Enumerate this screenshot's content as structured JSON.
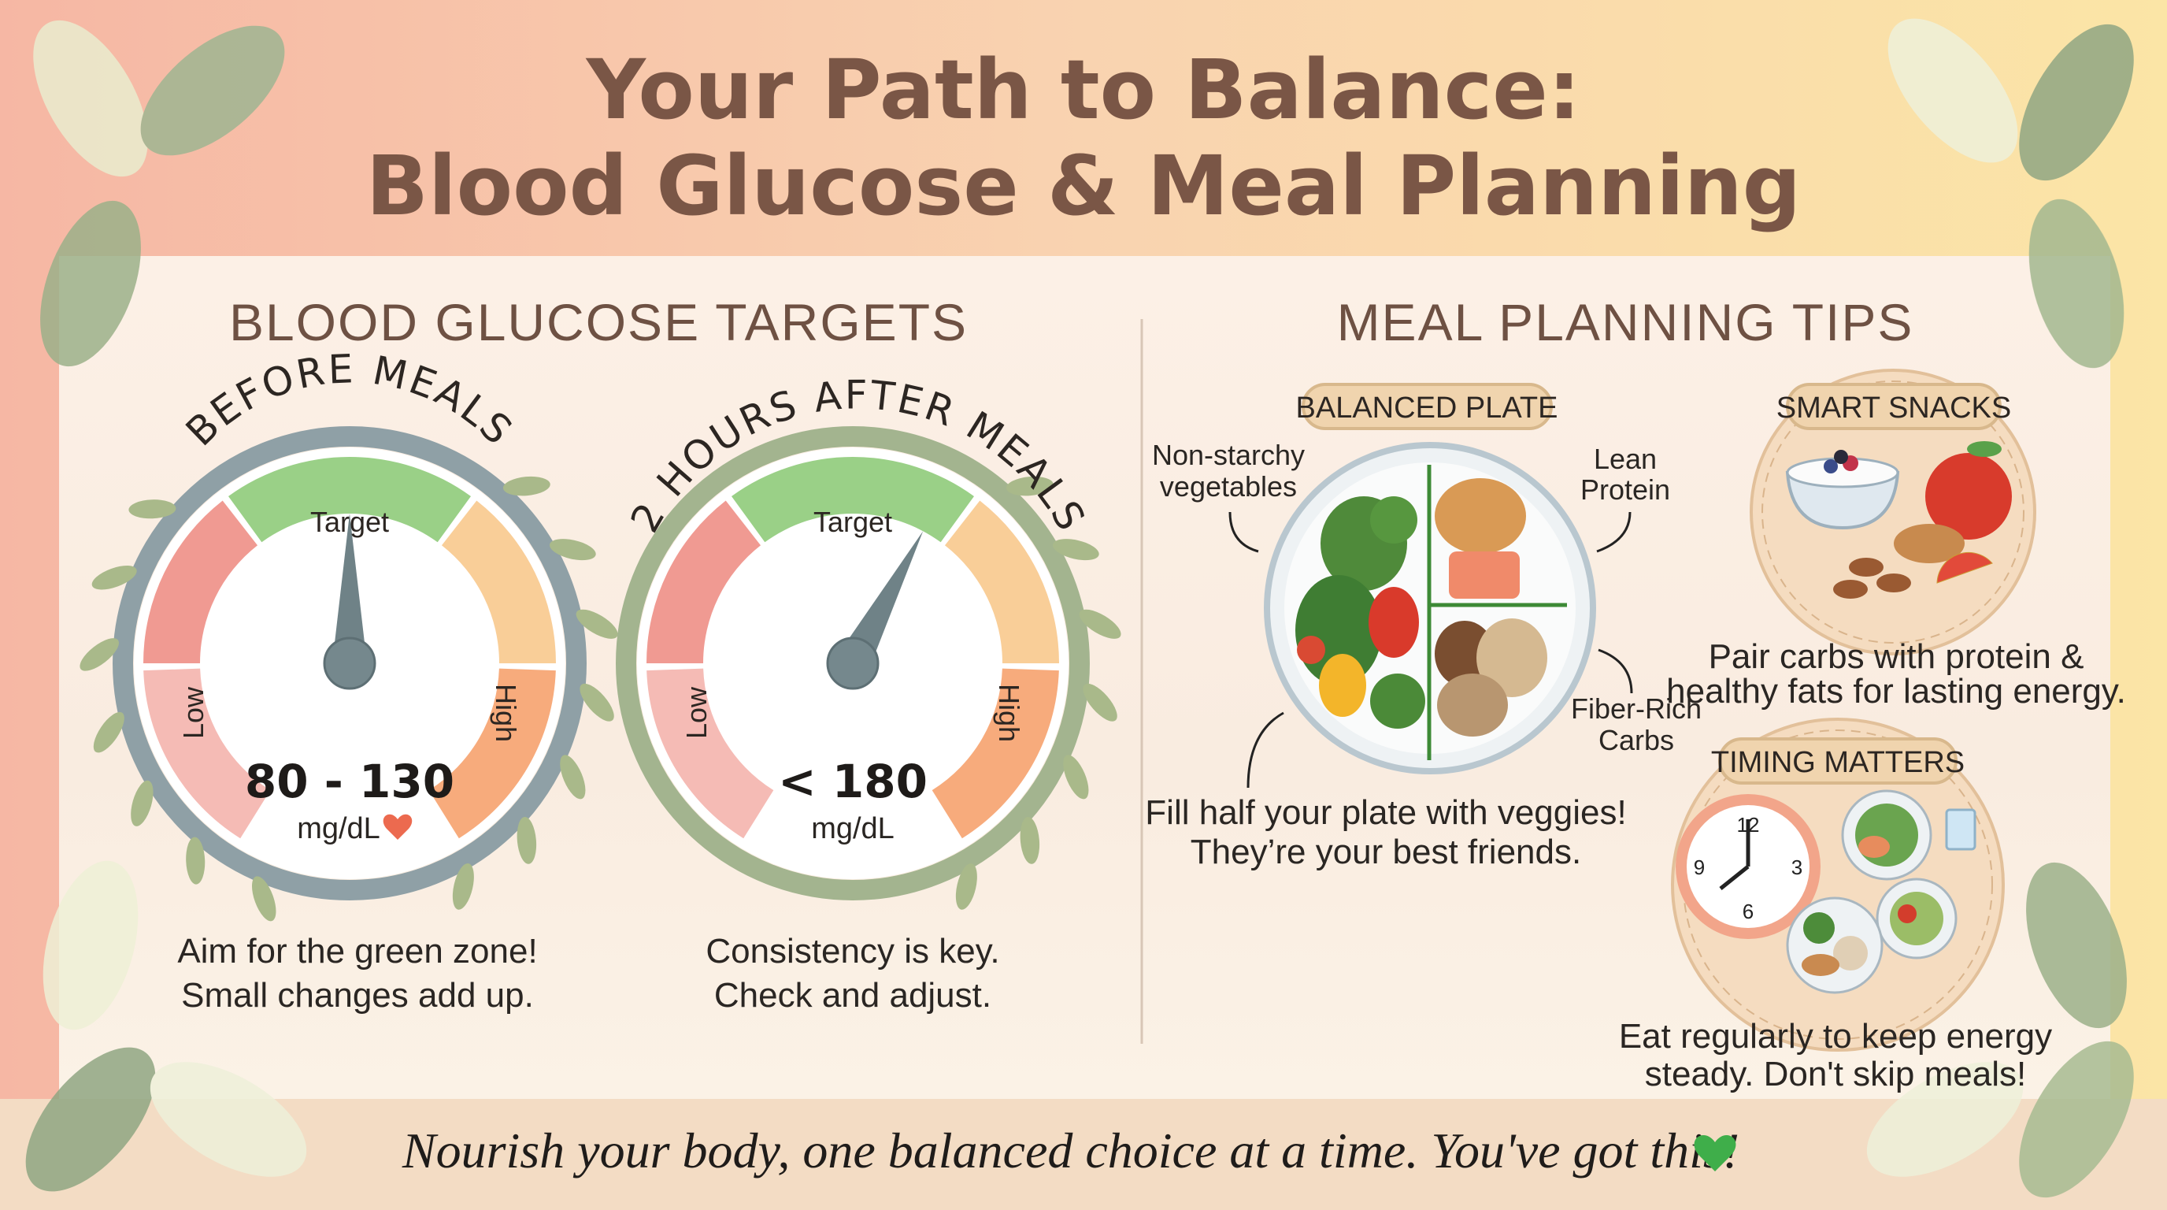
{
  "header": {
    "title_line1": "Your Path to Balance:",
    "title_line2": "Blood Glucose & Meal Planning"
  },
  "glucose": {
    "heading": "BLOOD GLUCOSE TARGETS",
    "gauges": [
      {
        "title": "BEFORE MEALS",
        "zones": {
          "target": "Target",
          "low": "Low",
          "high": "High"
        },
        "value": "80 - 130",
        "unit": "mg/dL",
        "unit_icon": "heart-icon",
        "caption_line1": "Aim for the green zone!",
        "caption_line2": "Small changes add up."
      },
      {
        "title": "2 HOURS AFTER MEALS",
        "zones": {
          "target": "Target",
          "low": "Low",
          "high": "High"
        },
        "value": "< 180",
        "unit": "mg/dL",
        "caption_line1": "Consistency is key.",
        "caption_line2": "Check and adjust."
      }
    ]
  },
  "meal": {
    "heading": "MEAL PLANNING TIPS",
    "balanced_plate": {
      "label": "BALANCED PLATE",
      "veg_line1": "Non-starchy",
      "veg_line2": "vegetables",
      "protein_line1": "Lean",
      "protein_line2": "Protein",
      "carbs_line1": "Fiber-Rich",
      "carbs_line2": "Carbs",
      "caption_line1": "Fill half your plate with veggies!",
      "caption_line2": "They’re your best friends."
    },
    "smart_snacks": {
      "label": "SMART SNACKS",
      "caption_line1": "Pair carbs with protein &",
      "caption_line2": "healthy fats for lasting energy."
    },
    "timing": {
      "label": "TIMING MATTERS",
      "clock_numbers": [
        "12",
        "3",
        "6",
        "9"
      ],
      "caption_line1": "Eat regularly to keep energy",
      "caption_line2": "steady. Don't skip meals!"
    }
  },
  "footer": {
    "text": "Nourish your body, one balanced choice at a time. You've got this!",
    "icon": "green-heart-icon"
  },
  "colors": {
    "title": "#7a5646",
    "target_green": "#8fcb7a",
    "low_pink": "#f4b4ad",
    "low_red": "#ee8f86",
    "high_orange": "#f6a26e",
    "mid_orange": "#f8c98d",
    "gauge_rim_grey": "#8fa0a6",
    "gauge_rim_green": "#a3b48f",
    "footer_heart": "#3fae4a"
  }
}
